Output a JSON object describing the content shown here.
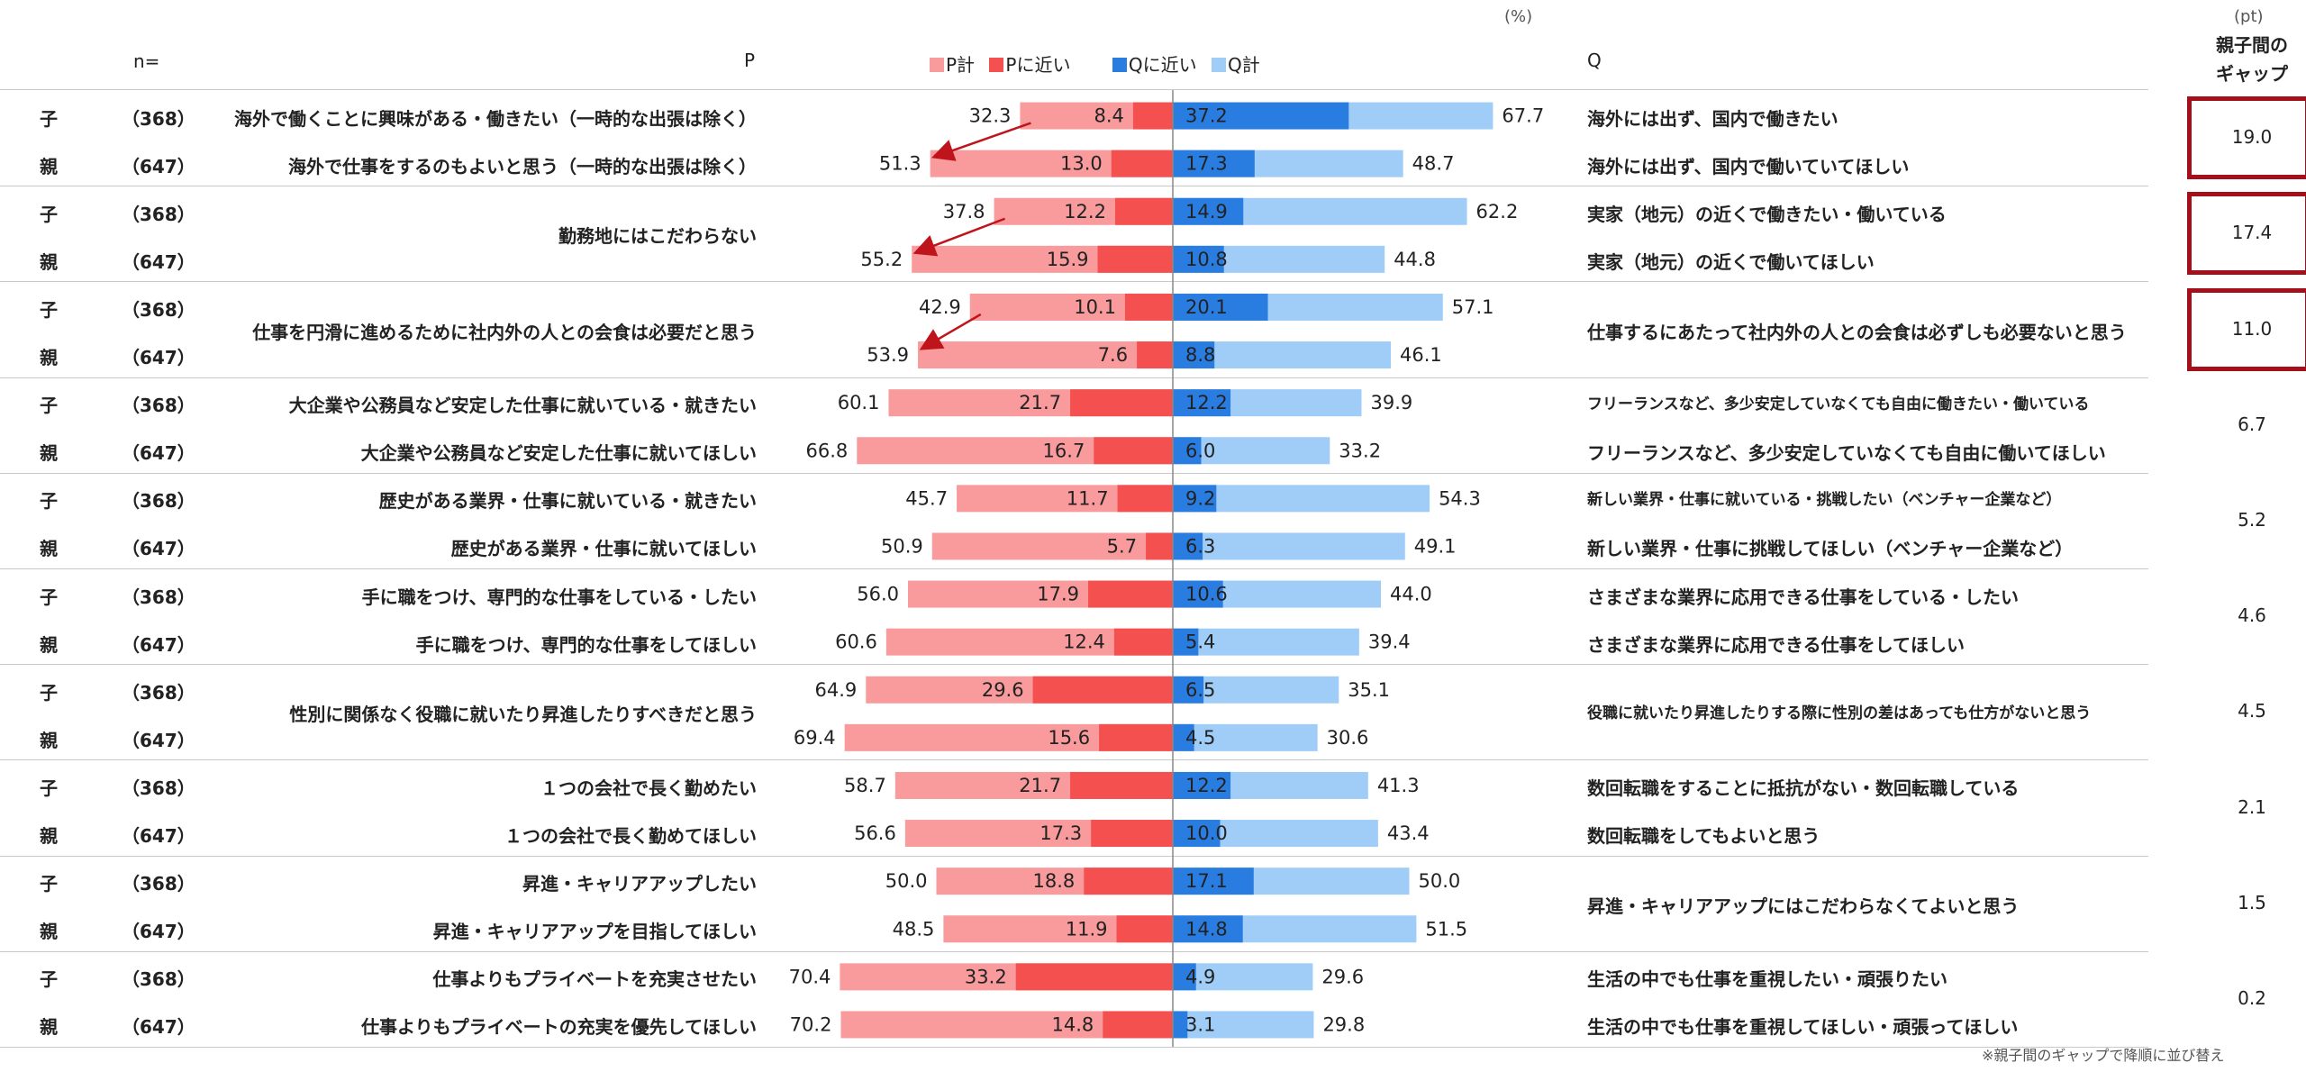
{
  "header": {
    "n_label": "n=",
    "p_label": "P",
    "q_label": "Q",
    "percent_unit": "(%)",
    "pt_unit": "(pt)",
    "gap_title_line1": "親子間の",
    "gap_title_line2": "ギャップ"
  },
  "legend": [
    {
      "name": "P計",
      "color": "#f99a9c"
    },
    {
      "name": "Pに近い",
      "color": "#f55050"
    },
    {
      "name": "Qに近い",
      "color": "#2a7de0"
    },
    {
      "name": "Q計",
      "color": "#9fcdf7"
    }
  ],
  "footnote": "※親子間のギャップで降順に並び替え",
  "chart_data": {
    "type": "bar",
    "xlim": [
      -75,
      75
    ],
    "series_meaning": {
      "p_total": "P計",
      "p_near": "Pに近い",
      "q_near": "Qに近い",
      "q_total": "Q計"
    },
    "groups": [
      {
        "p": "",
        "q": "",
        "gap": "19.0",
        "highlight": true,
        "arrow": true,
        "rows": [
          {
            "who": "子",
            "n": "（368）",
            "p_text": "海外で働くことに興味がある・働きたい（一時的な出張は除く）",
            "q_text": "海外には出ず、国内で働きたい",
            "p_total": 32.3,
            "p_near": 8.4,
            "q_near": 37.2,
            "q_total": 67.7
          },
          {
            "who": "親",
            "n": "（647）",
            "p_text": "海外で仕事をするのもよいと思う（一時的な出張は除く）",
            "q_text": "海外には出ず、国内で働いていてほしい",
            "p_total": 51.3,
            "p_near": 13.0,
            "q_near": 17.3,
            "q_total": 48.7
          }
        ]
      },
      {
        "p": "勤務地にはこだわらない",
        "q": "",
        "gap": "17.4",
        "highlight": true,
        "arrow": true,
        "rows": [
          {
            "who": "子",
            "n": "（368）",
            "p_text": "",
            "q_text": "実家（地元）の近くで働きたい・働いている",
            "p_total": 37.8,
            "p_near": 12.2,
            "q_near": 14.9,
            "q_total": 62.2
          },
          {
            "who": "親",
            "n": "（647）",
            "p_text": "",
            "q_text": "実家（地元）の近くで働いてほしい",
            "p_total": 55.2,
            "p_near": 15.9,
            "q_near": 10.8,
            "q_total": 44.8
          }
        ]
      },
      {
        "p": "仕事を円滑に進めるために社内外の人との会食は必要だと思う",
        "q": "仕事するにあたって社内外の人との会食は必ずしも必要ないと思う",
        "gap": "11.0",
        "highlight": true,
        "arrow": true,
        "rows": [
          {
            "who": "子",
            "n": "（368）",
            "p_text": "",
            "q_text": "",
            "p_total": 42.9,
            "p_near": 10.1,
            "q_near": 20.1,
            "q_total": 57.1
          },
          {
            "who": "親",
            "n": "（647）",
            "p_text": "",
            "q_text": "",
            "p_total": 53.9,
            "p_near": 7.6,
            "q_near": 8.8,
            "q_total": 46.1
          }
        ]
      },
      {
        "p": "",
        "q": "",
        "gap": "6.7",
        "highlight": false,
        "arrow": false,
        "rows": [
          {
            "who": "子",
            "n": "（368）",
            "p_text": "大企業や公務員など安定した仕事に就いている・就きたい",
            "q_text": "フリーランスなど、多少安定していなくても自由に働きたい・働いている",
            "p_total": 60.1,
            "p_near": 21.7,
            "q_near": 12.2,
            "q_total": 39.9
          },
          {
            "who": "親",
            "n": "（647）",
            "p_text": "大企業や公務員など安定した仕事に就いてほしい",
            "q_text": "フリーランスなど、多少安定していなくても自由に働いてほしい",
            "p_total": 66.8,
            "p_near": 16.7,
            "q_near": 6.0,
            "q_total": 33.2
          }
        ]
      },
      {
        "p": "",
        "q": "",
        "gap": "5.2",
        "highlight": false,
        "arrow": false,
        "rows": [
          {
            "who": "子",
            "n": "（368）",
            "p_text": "歴史がある業界・仕事に就いている・就きたい",
            "q_text": "新しい業界・仕事に就いている・挑戦したい（ベンチャー企業など）",
            "p_total": 45.7,
            "p_near": 11.7,
            "q_near": 9.2,
            "q_total": 54.3
          },
          {
            "who": "親",
            "n": "（647）",
            "p_text": "歴史がある業界・仕事に就いてほしい",
            "q_text": "新しい業界・仕事に挑戦してほしい（ベンチャー企業など）",
            "p_total": 50.9,
            "p_near": 5.7,
            "q_near": 6.3,
            "q_total": 49.1
          }
        ]
      },
      {
        "p": "",
        "q": "",
        "gap": "4.6",
        "highlight": false,
        "arrow": false,
        "rows": [
          {
            "who": "子",
            "n": "（368）",
            "p_text": "手に職をつけ、専門的な仕事をしている・したい",
            "q_text": "さまざまな業界に応用できる仕事をしている・したい",
            "p_total": 56.0,
            "p_near": 17.9,
            "q_near": 10.6,
            "q_total": 44.0
          },
          {
            "who": "親",
            "n": "（647）",
            "p_text": "手に職をつけ、専門的な仕事をしてほしい",
            "q_text": "さまざまな業界に応用できる仕事をしてほしい",
            "p_total": 60.6,
            "p_near": 12.4,
            "q_near": 5.4,
            "q_total": 39.4
          }
        ]
      },
      {
        "p": "性別に関係なく役職に就いたり昇進したりすべきだと思う",
        "q": "役職に就いたり昇進したりする際に性別の差はあっても仕方がないと思う",
        "gap": "4.5",
        "highlight": false,
        "arrow": false,
        "rows": [
          {
            "who": "子",
            "n": "（368）",
            "p_text": "",
            "q_text": "",
            "p_total": 64.9,
            "p_near": 29.6,
            "q_near": 6.5,
            "q_total": 35.1
          },
          {
            "who": "親",
            "n": "（647）",
            "p_text": "",
            "q_text": "",
            "p_total": 69.4,
            "p_near": 15.6,
            "q_near": 4.5,
            "q_total": 30.6
          }
        ]
      },
      {
        "p": "",
        "q": "",
        "gap": "2.1",
        "highlight": false,
        "arrow": false,
        "rows": [
          {
            "who": "子",
            "n": "（368）",
            "p_text": "１つの会社で長く勤めたい",
            "q_text": "数回転職をすることに抵抗がない・数回転職している",
            "p_total": 58.7,
            "p_near": 21.7,
            "q_near": 12.2,
            "q_total": 41.3
          },
          {
            "who": "親",
            "n": "（647）",
            "p_text": "１つの会社で長く勤めてほしい",
            "q_text": "数回転職をしてもよいと思う",
            "p_total": 56.6,
            "p_near": 17.3,
            "q_near": 10.0,
            "q_total": 43.4
          }
        ]
      },
      {
        "p": "",
        "q": "昇進・キャリアアップにはこだわらなくてよいと思う",
        "gap": "1.5",
        "highlight": false,
        "arrow": false,
        "rows": [
          {
            "who": "子",
            "n": "（368）",
            "p_text": "昇進・キャリアアップしたい",
            "q_text": "",
            "p_total": 50.0,
            "p_near": 18.8,
            "q_near": 17.1,
            "q_total": 50.0
          },
          {
            "who": "親",
            "n": "（647）",
            "p_text": "昇進・キャリアアップを目指してほしい",
            "q_text": "",
            "p_total": 48.5,
            "p_near": 11.9,
            "q_near": 14.8,
            "q_total": 51.5
          }
        ]
      },
      {
        "p": "",
        "q": "",
        "gap": "0.2",
        "highlight": false,
        "arrow": false,
        "rows": [
          {
            "who": "子",
            "n": "（368）",
            "p_text": "仕事よりもプライベートを充実させたい",
            "q_text": "生活の中でも仕事を重視したい・頑張りたい",
            "p_total": 70.4,
            "p_near": 33.2,
            "q_near": 4.9,
            "q_total": 29.6
          },
          {
            "who": "親",
            "n": "（647）",
            "p_text": "仕事よりもプライベートの充実を優先してほしい",
            "q_text": "生活の中でも仕事を重視してほしい・頑張ってほしい",
            "p_total": 70.2,
            "p_near": 14.8,
            "q_near": 3.1,
            "q_total": 29.8
          }
        ]
      }
    ]
  }
}
